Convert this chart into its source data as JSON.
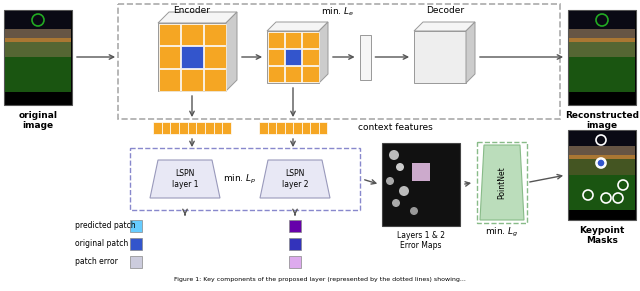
{
  "bg_color": "#ffffff",
  "encoder_label": "Encoder",
  "decoder_label": "Decoder",
  "min_le_label": "min. $L_e$",
  "min_lp_label": "min. $L_p$",
  "min_lg_label": "min. $L_g$",
  "context_features_label": "context features",
  "lspn_layer1_label": "LSPN\nlayer 1",
  "lspn_layer2_label": "LSPN\nlayer 2",
  "original_image_label": "original\nimage",
  "reconstructed_image_label": "Reconstructed\nimage",
  "keypoint_masks_label": "Keypoint\nMasks",
  "layers_error_maps_label": "Layers 1 & 2\nError Maps",
  "predicted_patch_label": "predicted patch",
  "original_patch_label": "original patch",
  "patch_error_label": "patch error",
  "pointnet_label": "PointNet",
  "orange_color": "#F5A623",
  "blue_color": "#3355CC",
  "light_blue_color": "#66CCFF",
  "light_purple_color": "#DDAAEE",
  "purple_color": "#6600AA",
  "light_gray_color": "#CCCCDD",
  "cube_face_color": "#EEEEEE",
  "cube_top_color": "#F5F5F5",
  "cube_right_color": "#CCCCCC",
  "cube_edge_color": "#999999",
  "green_box_color": "#BBDDBB",
  "green_dashed_color": "#88BB88",
  "blue_dashed_color": "#8888CC",
  "gray_dashed_color": "#AAAAAA",
  "lspn_face_color": "#E8E8F5",
  "lspn_edge_color": "#9999BB"
}
